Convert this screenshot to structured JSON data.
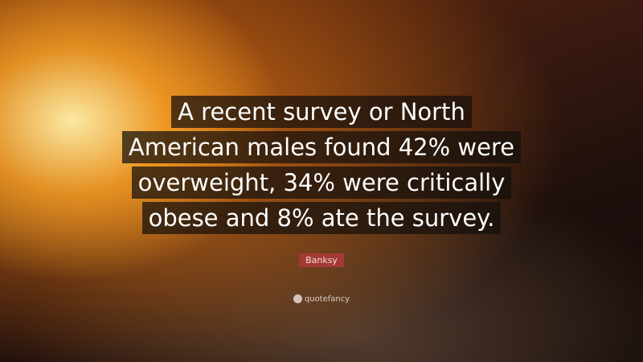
{
  "quote": {
    "lines": [
      "A recent survey or North",
      "American males found 42% were",
      "overweight, 34% were critically",
      "obese and 8% ate the survey."
    ]
  },
  "author": "Banksy",
  "brand": "quotefancy",
  "colors": {
    "author_badge": "#a33a35"
  }
}
